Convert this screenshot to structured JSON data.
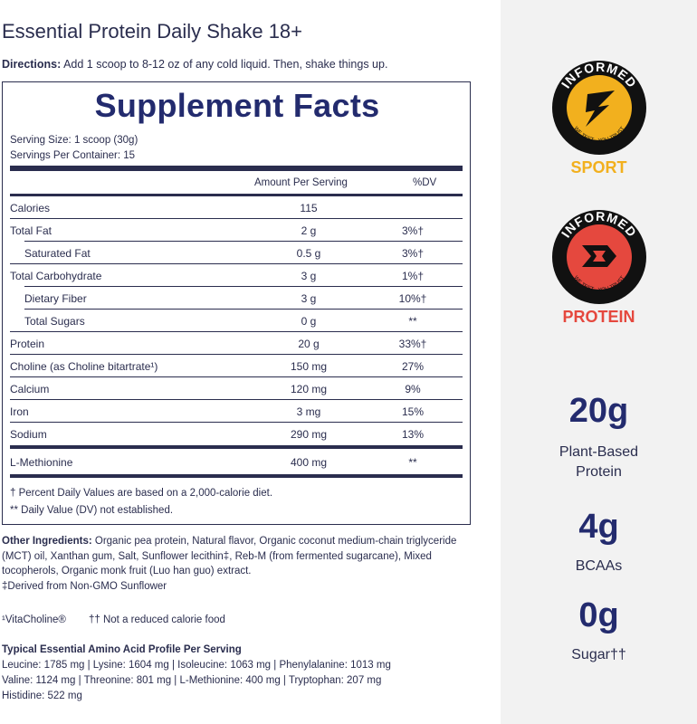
{
  "title": "Essential Protein Daily Shake 18+",
  "directions": {
    "label": "Directions:",
    "text": " Add 1 scoop to 8-12 oz of any cold liquid. Then, shake things up."
  },
  "facts": {
    "heading": "Supplement Facts",
    "serving_size": "Serving Size: 1 scoop (30g)",
    "servings_per_container": "Servings Per Container: 15",
    "col_amount": "Amount Per Serving",
    "col_dv": "%DV",
    "rows": [
      {
        "label": "Calories",
        "amount": "115",
        "dv": ""
      },
      {
        "label": "Total Fat",
        "amount": "2 g",
        "dv": "3%†"
      },
      {
        "label": "Saturated Fat",
        "amount": "0.5 g",
        "dv": "3%†"
      },
      {
        "label": "Total Carbohydrate",
        "amount": "3 g",
        "dv": "1%†"
      },
      {
        "label": "Dietary Fiber",
        "amount": "3 g",
        "dv": "10%†"
      },
      {
        "label": "Total Sugars",
        "amount": "0 g",
        "dv": "**"
      },
      {
        "label": "Protein",
        "amount": "20 g",
        "dv": "33%†"
      },
      {
        "label": "Choline (as Choline bitartrate¹)",
        "amount": "150 mg",
        "dv": "27%"
      },
      {
        "label": "Calcium",
        "amount": "120 mg",
        "dv": "9%"
      },
      {
        "label": "Iron",
        "amount": "3 mg",
        "dv": "15%"
      },
      {
        "label": "Sodium",
        "amount": "290 mg",
        "dv": "13%"
      },
      {
        "label": "L-Methionine",
        "amount": "400 mg",
        "dv": "**"
      }
    ],
    "footnote_1": "† Percent Daily Values are based on a 2,000-calorie diet.",
    "footnote_2": "** Daily Value (DV) not established."
  },
  "other_ingredients": {
    "label": "Other Ingredients:",
    "text": " Organic pea protein, Natural flavor, Organic coconut medium-chain triglyceride (MCT) oil, Xanthan gum, Salt, Sunflower lecithin‡, Reb-M (from fermented sugarcane), Mixed tocopherols, Organic monk fruit (Luo han guo) extract.",
    "derived": "‡Derived from Non-GMO Sunflower"
  },
  "vitacholine": "¹VitaCholine®",
  "not_reduced": "†† Not a reduced calorie food",
  "amino": {
    "title": "Typical Essential Amino Acid Profile Per Serving",
    "line1": "Leucine: 1785 mg | Lysine: 1604 mg | Isoleucine: 1063 mg | Phenylalanine: 1013 mg",
    "line2": "Valine: 1124 mg | Threonine: 801 mg | L-Methionine: 400 mg | Tryptophan: 207 mg",
    "line3": "Histidine: 522 mg"
  },
  "badges": [
    {
      "ring_text": "INFORMED",
      "inner_text": "WE TEST · YOU TRUST",
      "label": "SPORT",
      "color": "#f2b01e"
    },
    {
      "ring_text": "INFORMED",
      "inner_text": "WE TEST · YOU TRUST",
      "label": "PROTEIN",
      "color": "#e5483e"
    }
  ],
  "stats": [
    {
      "value": "20g",
      "label_1": "Plant-Based",
      "label_2": "Protein"
    },
    {
      "value": "4g",
      "label_1": "BCAAs",
      "label_2": ""
    },
    {
      "value": "0g",
      "label_1": "Sugar††",
      "label_2": ""
    }
  ]
}
